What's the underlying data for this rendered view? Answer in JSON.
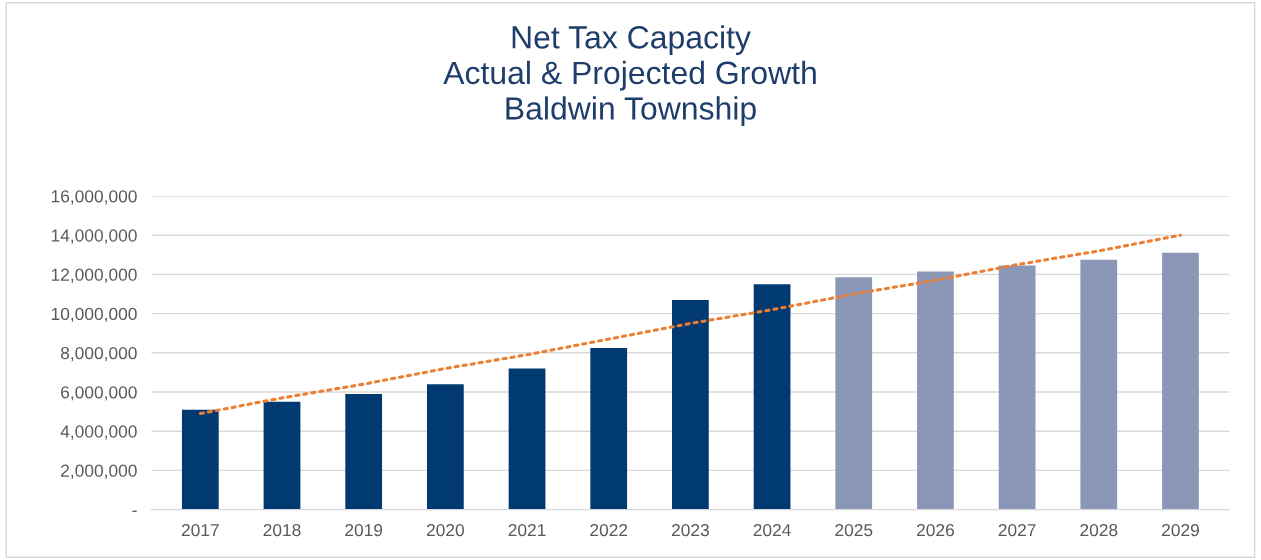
{
  "chart_data": {
    "type": "bar",
    "title": "Net Tax Capacity\nActual & Projected Growth\nBaldwin Township",
    "categories": [
      "2017",
      "2018",
      "2019",
      "2020",
      "2021",
      "2022",
      "2023",
      "2024",
      "2025",
      "2026",
      "2027",
      "2028",
      "2029"
    ],
    "series": [
      {
        "colors": [
          "#003a70",
          "#003a70",
          "#003a70",
          "#003a70",
          "#003a70",
          "#003a70",
          "#003a70",
          "#003a70",
          "#8a97b6",
          "#8a97b6",
          "#8a97b6",
          "#8a97b6",
          "#8a97b6"
        ],
        "values": [
          5100000,
          5500000,
          5900000,
          6400000,
          7200000,
          8250000,
          10700000,
          11500000,
          11850000,
          12150000,
          12450000,
          12750000,
          13100000
        ]
      },
      {
        "type": "line",
        "color": "#ed7d31",
        "line_style": "dotted",
        "values": [
          4900000,
          5700000,
          6400000,
          7200000,
          7900000,
          8700000,
          9500000,
          10200000,
          11000000,
          11700000,
          12500000,
          13200000,
          14000000
        ]
      }
    ],
    "ylim": [
      0,
      16000000
    ],
    "yticks": [
      {
        "value": 0,
        "label": "-"
      },
      {
        "value": 2000000,
        "label": "2,000,000"
      },
      {
        "value": 4000000,
        "label": "4,000,000"
      },
      {
        "value": 6000000,
        "label": "6,000,000"
      },
      {
        "value": 8000000,
        "label": "8,000,000"
      },
      {
        "value": 10000000,
        "label": "10,000,000"
      },
      {
        "value": 12000000,
        "label": "12,000,000"
      },
      {
        "value": 14000000,
        "label": "14,000,000"
      },
      {
        "value": 16000000,
        "label": "16,000,000"
      }
    ],
    "grid": "y"
  }
}
